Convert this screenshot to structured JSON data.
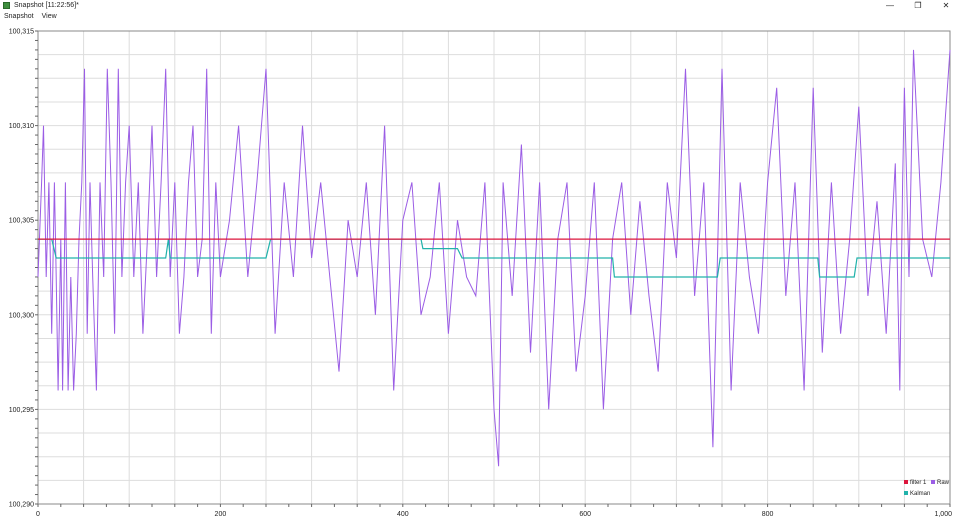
{
  "window": {
    "title": "Snapshot [11:22:56]*",
    "app_icon": "snapshot-app-icon",
    "controls": {
      "minimize": "—",
      "restore": "❐",
      "close": "✕"
    }
  },
  "menu": {
    "items": [
      "Snapshot",
      "View"
    ]
  },
  "colors": {
    "filter1": "#dc143c",
    "raw": "#9b5de5",
    "kalman": "#20b2aa",
    "grid": "#dddddd"
  },
  "chart_data": {
    "type": "line",
    "xlim": [
      0,
      1000
    ],
    "ylim": [
      100290,
      100315
    ],
    "x_ticks": [
      "0",
      "200",
      "400",
      "600",
      "800",
      "1,000"
    ],
    "x_tick_values": [
      0,
      200,
      400,
      600,
      800,
      1000
    ],
    "y_ticks": [
      "100,290",
      "100,295",
      "100,300",
      "100,305",
      "100,310",
      "100,315"
    ],
    "y_tick_values": [
      100290,
      100295,
      100300,
      100305,
      100310,
      100315
    ],
    "grid": true,
    "legend_position": "bottom-right",
    "legend": [
      "filter 1",
      "Raw",
      "Kalman"
    ],
    "series": [
      {
        "name": "filter 1",
        "color": "#dc143c",
        "x": [
          0,
          1000
        ],
        "y": [
          100304,
          100304
        ]
      },
      {
        "name": "Kalman",
        "color": "#20b2aa",
        "x": [
          0,
          15,
          20,
          140,
          143,
          145,
          250,
          255,
          420,
          422,
          460,
          465,
          630,
          632,
          700,
          705,
          745,
          748,
          855,
          857,
          895,
          898,
          1000
        ],
        "y": [
          100304,
          100304,
          100303,
          100303,
          100304,
          100303,
          100303,
          100304,
          100304,
          100303.5,
          100303.5,
          100303,
          100303,
          100302,
          100302,
          100302,
          100302,
          100303,
          100303,
          100302,
          100302,
          100303,
          100303
        ]
      },
      {
        "name": "Raw",
        "color": "#9b5de5",
        "x": [
          0,
          4,
          6,
          9,
          12,
          15,
          18,
          20,
          22,
          25,
          27,
          30,
          33,
          36,
          39,
          42,
          45,
          48,
          51,
          54,
          57,
          60,
          64,
          68,
          72,
          76,
          80,
          84,
          88,
          92,
          96,
          100,
          105,
          110,
          115,
          120,
          125,
          130,
          135,
          140,
          145,
          150,
          155,
          160,
          165,
          170,
          175,
          180,
          185,
          190,
          195,
          200,
          210,
          220,
          230,
          240,
          250,
          260,
          270,
          280,
          290,
          300,
          310,
          320,
          330,
          340,
          350,
          360,
          370,
          380,
          390,
          400,
          410,
          420,
          430,
          440,
          450,
          460,
          470,
          480,
          490,
          500,
          505,
          510,
          520,
          530,
          540,
          550,
          560,
          570,
          580,
          590,
          600,
          610,
          620,
          630,
          640,
          650,
          660,
          670,
          680,
          690,
          700,
          710,
          720,
          730,
          740,
          750,
          760,
          770,
          780,
          790,
          800,
          810,
          820,
          830,
          840,
          850,
          860,
          870,
          880,
          890,
          900,
          910,
          920,
          930,
          940,
          945,
          948,
          950,
          952,
          955,
          960,
          970,
          980,
          990,
          1000
        ],
        "y": [
          100302,
          100307,
          100310,
          100302,
          100307,
          100299,
          100307,
          100302,
          100296,
          100304,
          100296,
          100307,
          100296,
          100302,
          100296,
          100299,
          100304,
          100307,
          100313,
          100299,
          100307,
          100302,
          100296,
          100307,
          100302,
          100313,
          100307,
          100299,
          100313,
          100302,
          100307,
          100310,
          100302,
          100307,
          100299,
          100304,
          100310,
          100302,
          100307,
          100313,
          100302,
          100307,
          100299,
          100302,
          100307,
          100310,
          100302,
          100304,
          100313,
          100299,
          100307,
          100302,
          100305,
          100310,
          100302,
          100307,
          100313,
          100299,
          100307,
          100302,
          100310,
          100303,
          100307,
          100302,
          100297,
          100305,
          100302,
          100307,
          100300,
          100310,
          100296,
          100305,
          100307,
          100300,
          100302,
          100307,
          100299,
          100305,
          100302,
          100301,
          100307,
          100295,
          100292,
          100307,
          100301,
          100309,
          100298,
          100307,
          100295,
          100304,
          100307,
          100297,
          100301,
          100307,
          100295,
          100304,
          100307,
          100300,
          100306,
          100301,
          100297,
          100307,
          100303,
          100313,
          100301,
          100307,
          100293,
          100313,
          100296,
          100307,
          100302,
          100299,
          100307,
          100312,
          100301,
          100307,
          100296,
          100312,
          100298,
          100307,
          100299,
          100304,
          100311,
          100301,
          100306,
          100299,
          100308,
          100296,
          100307,
          100312,
          100308,
          100302,
          100314,
          100304,
          100302,
          100307,
          100314
        ]
      }
    ]
  }
}
